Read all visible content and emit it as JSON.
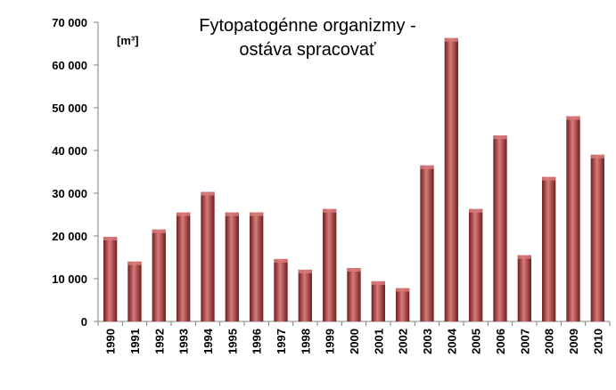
{
  "chart_data": {
    "type": "bar",
    "title_lines": [
      "Fytopatogénne organizmy -",
      "ostáva spracovať"
    ],
    "unit": "[m³]",
    "categories": [
      "1990",
      "1991",
      "1992",
      "1993",
      "1994",
      "1995",
      "1996",
      "1997",
      "1998",
      "1999",
      "2000",
      "2001",
      "2002",
      "2003",
      "2004",
      "2005",
      "2006",
      "2007",
      "2008",
      "2009",
      "2010"
    ],
    "values": [
      19800,
      14000,
      21500,
      25500,
      30300,
      25500,
      25500,
      14600,
      12100,
      26300,
      12500,
      9400,
      7800,
      36500,
      66300,
      26300,
      43500,
      15500,
      33800,
      48000,
      39000
    ],
    "ylim": [
      0,
      70000
    ],
    "yticks": [
      0,
      10000,
      20000,
      30000,
      40000,
      50000,
      60000,
      70000
    ],
    "ytick_labels": [
      "0",
      "10 000",
      "20 000",
      "30 000",
      "40 000",
      "50 000",
      "60 000",
      "70 000"
    ],
    "grid": false,
    "bar_color": "#a83c3c",
    "bar_highlight": "#d97a7a",
    "bar_shadow": "#6e1e1e"
  }
}
